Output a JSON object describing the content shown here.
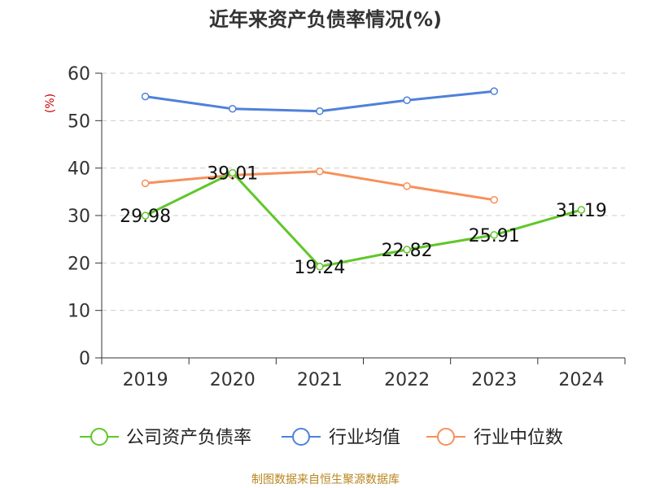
{
  "chart_data": {
    "type": "line",
    "title": "近年来资产负债率情况(%)",
    "ylabel": "(%)",
    "xlabel": "",
    "categories": [
      "2019",
      "2020",
      "2021",
      "2022",
      "2023",
      "2024"
    ],
    "ylim": [
      0,
      60
    ],
    "yticks": [
      0,
      10,
      20,
      30,
      40,
      50,
      60
    ],
    "grid": true,
    "legend": "bottom",
    "series": [
      {
        "name": "公司资产负债率",
        "color": "#5fc72a",
        "values": [
          29.98,
          39.01,
          19.24,
          22.82,
          25.91,
          31.19
        ],
        "labels": [
          "29.98",
          "39.01",
          "19.24",
          "22.82",
          "25.91",
          "31.19"
        ]
      },
      {
        "name": "行业均值",
        "color": "#4f81d9",
        "values": [
          55.1,
          52.5,
          52.0,
          54.3,
          56.2,
          null
        ]
      },
      {
        "name": "行业中位数",
        "color": "#f7905a",
        "values": [
          36.8,
          38.5,
          39.3,
          36.2,
          33.3,
          null
        ]
      }
    ]
  },
  "footer": {
    "source": "制图数据来自恒生聚源数据库"
  },
  "colors": {
    "title": "#333333",
    "ylabel": "#cc0000",
    "axis": "#333333",
    "grid": "#cccccc",
    "source": "#b8861f"
  }
}
